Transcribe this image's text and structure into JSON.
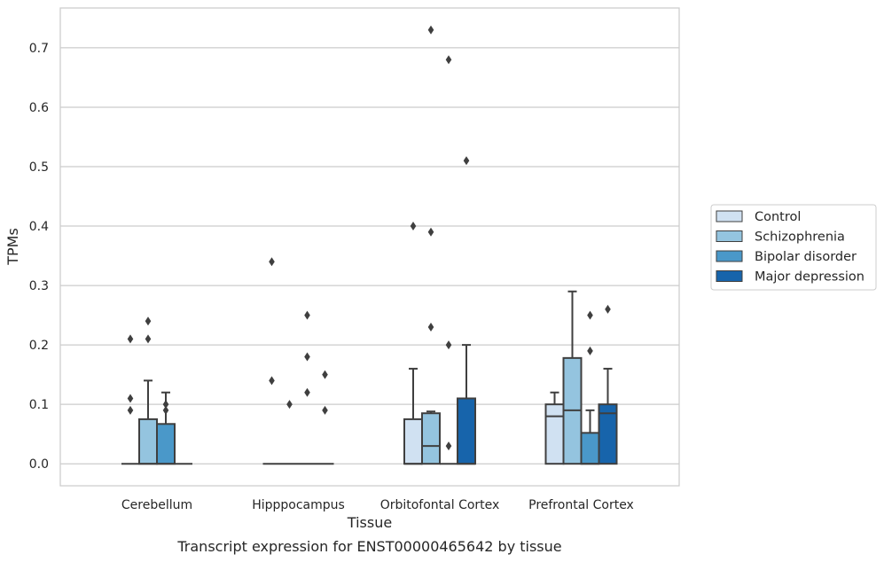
{
  "chart_data": {
    "type": "box",
    "title": "Transcript expression for ENST00000465642 by tissue",
    "xlabel": "Tissue",
    "ylabel": "TPMs",
    "ylim": [
      -0.037,
      0.767
    ],
    "yticks": [
      0.0,
      0.1,
      0.2,
      0.3,
      0.4,
      0.5,
      0.6,
      0.7
    ],
    "ytick_labels": [
      "0.0",
      "0.1",
      "0.2",
      "0.3",
      "0.4",
      "0.5",
      "0.6",
      "0.7"
    ],
    "categories": [
      "Cerebellum",
      "Hipppocampus",
      "Orbitofontal Cortex",
      "Prefrontal Cortex"
    ],
    "grid": "horizontal",
    "legend_position": "right",
    "series": [
      {
        "name": "Control",
        "color": "#d0e1f2",
        "boxes": [
          {
            "q1": 0.0,
            "median": 0.0,
            "q3": 0.0,
            "whislo": 0.0,
            "whishi": 0.0,
            "fliers": [
              0.21,
              0.11,
              0.09
            ]
          },
          {
            "q1": 0.0,
            "median": 0.0,
            "q3": 0.0,
            "whislo": 0.0,
            "whishi": 0.0,
            "fliers": [
              0.34,
              0.14
            ]
          },
          {
            "q1": 0.0,
            "median": 0.0,
            "q3": 0.075,
            "whislo": 0.0,
            "whishi": 0.16,
            "fliers": [
              0.4
            ]
          },
          {
            "q1": 0.0,
            "median": 0.08,
            "q3": 0.1,
            "whislo": 0.0,
            "whishi": 0.12,
            "fliers": []
          }
        ]
      },
      {
        "name": "Schizophrenia",
        "color": "#94c4df",
        "boxes": [
          {
            "q1": 0.0,
            "median": 0.0,
            "q3": 0.075,
            "whislo": 0.0,
            "whishi": 0.14,
            "fliers": [
              0.24,
              0.21
            ]
          },
          {
            "q1": 0.0,
            "median": 0.0,
            "q3": 0.0,
            "whislo": 0.0,
            "whishi": 0.0,
            "fliers": [
              0.1
            ]
          },
          {
            "q1": 0.0,
            "median": 0.03,
            "q3": 0.085,
            "whislo": 0.0,
            "whishi": 0.088,
            "fliers": [
              0.73,
              0.39,
              0.23
            ]
          },
          {
            "q1": 0.0,
            "median": 0.09,
            "q3": 0.178,
            "whislo": 0.0,
            "whishi": 0.29,
            "fliers": []
          }
        ]
      },
      {
        "name": "Bipolar disorder",
        "color": "#4a98c9",
        "boxes": [
          {
            "q1": 0.0,
            "median": 0.0,
            "q3": 0.067,
            "whislo": 0.0,
            "whishi": 0.12,
            "fliers": [
              0.1,
              0.09
            ]
          },
          {
            "q1": 0.0,
            "median": 0.0,
            "q3": 0.0,
            "whislo": 0.0,
            "whishi": 0.0,
            "fliers": [
              0.25,
              0.18,
              0.12
            ]
          },
          {
            "q1": 0.0,
            "median": 0.0,
            "q3": 0.0,
            "whislo": 0.0,
            "whishi": 0.0,
            "fliers": [
              0.68,
              0.2,
              0.03
            ]
          },
          {
            "q1": 0.0,
            "median": 0.0,
            "q3": 0.052,
            "whislo": 0.0,
            "whishi": 0.09,
            "fliers": [
              0.25,
              0.19
            ]
          }
        ]
      },
      {
        "name": "Major depression",
        "color": "#1764ab",
        "boxes": [
          {
            "q1": 0.0,
            "median": 0.0,
            "q3": 0.0,
            "whislo": 0.0,
            "whishi": 0.0,
            "fliers": []
          },
          {
            "q1": 0.0,
            "median": 0.0,
            "q3": 0.0,
            "whislo": 0.0,
            "whishi": 0.0,
            "fliers": [
              0.15,
              0.09
            ]
          },
          {
            "q1": 0.0,
            "median": 0.0,
            "q3": 0.11,
            "whislo": 0.0,
            "whishi": 0.2,
            "fliers": [
              0.51
            ]
          },
          {
            "q1": 0.0,
            "median": 0.085,
            "q3": 0.1,
            "whislo": 0.0,
            "whishi": 0.16,
            "fliers": [
              0.26
            ]
          }
        ]
      }
    ]
  }
}
